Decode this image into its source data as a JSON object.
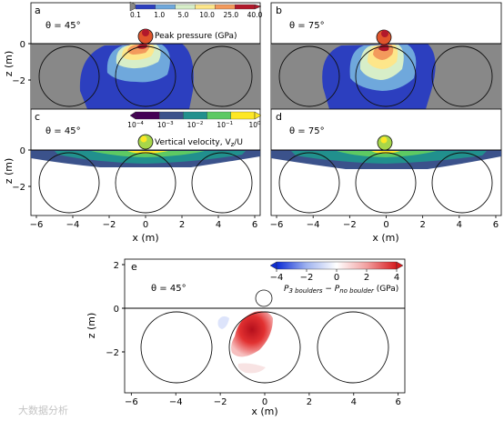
{
  "chart_data": [
    {
      "panel": "a",
      "type": "heatmap",
      "annotation": "θ = 45°",
      "ylabel": "z (m)",
      "xlim": [
        -6.3,
        6.3
      ],
      "ylim": [
        -3.5,
        1.2
      ],
      "yticks": [
        "0",
        "−2"
      ],
      "field": "Peak pressure",
      "colorbar": {
        "label": "Peak pressure (GPa)",
        "ticks": [
          "0.1",
          "1.0",
          "5.0",
          "10.0",
          "25.0",
          "40.0"
        ],
        "colors": [
          "#2c3fbf",
          "#6fa8dc",
          "#d7eec8",
          "#fde68a",
          "#f39a5c",
          "#b2182b"
        ]
      },
      "boulders": [
        {
          "x": -4,
          "z": -1.75,
          "r": 1.3
        },
        {
          "x": 0,
          "z": -1.75,
          "r": 1.3
        },
        {
          "x": 4,
          "z": -1.75,
          "r": 1.3
        }
      ],
      "impactor": {
        "x": 0,
        "z": 0.35
      }
    },
    {
      "panel": "b",
      "type": "heatmap",
      "annotation": "θ = 75°",
      "xlim": [
        -6.3,
        6.3
      ],
      "ylim": [
        -3.5,
        1.2
      ],
      "field": "Peak pressure",
      "boulders": [
        {
          "x": -4,
          "z": -1.75,
          "r": 1.3
        },
        {
          "x": 0,
          "z": -1.75,
          "r": 1.3
        },
        {
          "x": 4,
          "z": -1.75,
          "r": 1.3
        }
      ],
      "impactor": {
        "x": 0,
        "z": 0.35
      }
    },
    {
      "panel": "c",
      "type": "heatmap",
      "annotation": "θ = 45°",
      "ylabel": "z (m)",
      "xlabel": "x (m)",
      "xlim": [
        -6.3,
        6.3
      ],
      "ylim": [
        -3.5,
        1.2
      ],
      "xticks": [
        "−6",
        "−4",
        "−2",
        "0",
        "2",
        "4",
        "6"
      ],
      "yticks": [
        "0",
        "−2"
      ],
      "field": "Vertical velocity",
      "colorbar": {
        "label": "Vertical velocity, V",
        "label_sub": "z",
        "label_tail": "/U",
        "ticks": [
          "10",
          "10",
          "10",
          "10",
          "10"
        ],
        "tick_exponents": [
          "−4",
          "−3",
          "−2",
          "−1",
          "0"
        ],
        "colors": [
          "#440154",
          "#3b528b",
          "#21908d",
          "#5dc963",
          "#fde725"
        ]
      },
      "boulders": [
        {
          "x": -4,
          "z": -1.75,
          "r": 1.3
        },
        {
          "x": 0,
          "z": -1.75,
          "r": 1.3
        },
        {
          "x": 4,
          "z": -1.75,
          "r": 1.3
        }
      ],
      "impactor": {
        "x": 0,
        "z": 0.35
      }
    },
    {
      "panel": "d",
      "type": "heatmap",
      "annotation": "θ = 75°",
      "xlabel": "x (m)",
      "xlim": [
        -6.3,
        6.3
      ],
      "ylim": [
        -3.5,
        1.2
      ],
      "xticks": [
        "−6",
        "−4",
        "−2",
        "0",
        "2",
        "4",
        "6"
      ],
      "field": "Vertical velocity",
      "boulders": [
        {
          "x": -4,
          "z": -1.75,
          "r": 1.3
        },
        {
          "x": 0,
          "z": -1.75,
          "r": 1.3
        },
        {
          "x": 4,
          "z": -1.75,
          "r": 1.3
        }
      ],
      "impactor": {
        "x": 0,
        "z": 0.35
      }
    },
    {
      "panel": "e",
      "type": "heatmap",
      "annotation": "θ = 45°",
      "xlabel": "x (m)",
      "ylabel": "z (m)",
      "xlim": [
        -6.3,
        6.3
      ],
      "ylim": [
        -3.5,
        2.2
      ],
      "xticks": [
        "−6",
        "−4",
        "−2",
        "0",
        "2",
        "4",
        "6"
      ],
      "yticks": [
        "2",
        "0",
        "−2"
      ],
      "field": "Pressure difference",
      "colorbar": {
        "label_parts": [
          "P",
          "3 boulders",
          " − P",
          "no boulder",
          " (GPa)"
        ],
        "ticks": [
          "−4",
          "−2",
          "0",
          "2",
          "4"
        ],
        "colors": [
          "#0b2bd6",
          "#9fb3f0",
          "#ffffff",
          "#f2a0a0",
          "#d7191c"
        ]
      },
      "boulders": [
        {
          "x": -4,
          "z": -1.75,
          "r": 1.3
        },
        {
          "x": 0,
          "z": -1.75,
          "r": 1.3
        },
        {
          "x": 4,
          "z": -1.75,
          "r": 1.3
        }
      ],
      "impactor": {
        "x": 0,
        "z": 0.35
      }
    }
  ],
  "watermark": "大数据分析"
}
